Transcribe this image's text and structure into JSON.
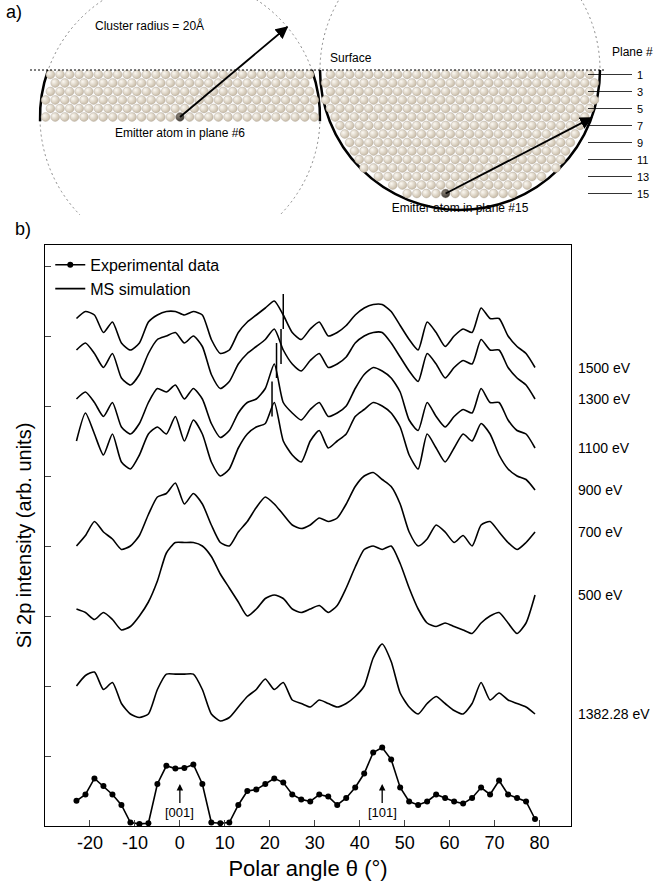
{
  "diagram": {
    "label": "a)",
    "cluster_label": "Cluster radius = 20Å",
    "surface_label": "Surface",
    "plane_header": "Plane #",
    "plane_numbers": [
      1,
      3,
      5,
      7,
      9,
      11,
      13,
      15
    ],
    "clusters": [
      {
        "emitter_plane": 6,
        "label": "Emitter atom in plane #6"
      },
      {
        "emitter_plane": 15,
        "label": "Emitter atom in plane #15"
      }
    ]
  },
  "chart_data": {
    "label": "b)",
    "type": "line",
    "x_label": "Polar angle θ (°)",
    "y_label": "Si 2p intensity (arb. units)",
    "color": "#000000",
    "legend": "top left",
    "tick_labels": "x",
    "xlim": [
      -30,
      87
    ],
    "xticks": [
      -20,
      -10,
      0,
      10,
      20,
      30,
      40,
      50,
      60,
      70,
      80
    ],
    "ylim": [
      0,
      8.3
    ],
    "yticks": [
      1,
      2,
      3,
      4,
      5,
      6,
      7,
      8
    ],
    "x": [
      -23,
      -21,
      -19,
      -17,
      -15,
      -13,
      -11,
      -9,
      -7,
      -5,
      -3,
      -1,
      1,
      3,
      5,
      7,
      9,
      11,
      13,
      15,
      17,
      19,
      21,
      23,
      25,
      27,
      29,
      31,
      33,
      35,
      37,
      39,
      41,
      43,
      45,
      47,
      49,
      51,
      53,
      55,
      57,
      59,
      61,
      63,
      65,
      67,
      69,
      71,
      73,
      75,
      77,
      79
    ],
    "series": [
      {
        "name": "Experimental data",
        "marker": "circle",
        "line_style": "solid",
        "values": [
          0.36,
          0.45,
          0.68,
          0.57,
          0.45,
          0.3,
          0.05,
          0.03,
          0.04,
          0.6,
          0.86,
          0.82,
          0.83,
          0.88,
          0.6,
          0.05,
          0.04,
          0.05,
          0.3,
          0.5,
          0.52,
          0.6,
          0.68,
          0.62,
          0.45,
          0.38,
          0.35,
          0.45,
          0.42,
          0.3,
          0.4,
          0.55,
          0.75,
          1.05,
          1.12,
          0.95,
          0.55,
          0.35,
          0.3,
          0.35,
          0.45,
          0.4,
          0.35,
          0.32,
          0.4,
          0.55,
          0.45,
          0.65,
          0.45,
          0.4,
          0.35,
          0.1
        ]
      },
      {
        "name": "MS simulation",
        "label": "1500 eV",
        "line_style": "solid",
        "mark_x": 23,
        "values": [
          7.25,
          7.35,
          7.3,
          7.05,
          7.2,
          6.9,
          6.8,
          6.9,
          7.2,
          7.3,
          7.35,
          7.35,
          7.3,
          7.35,
          7.3,
          6.95,
          6.75,
          6.8,
          7.05,
          7.2,
          7.3,
          7.4,
          7.5,
          7.3,
          7.05,
          6.95,
          7.1,
          7.2,
          7.0,
          7.05,
          7.15,
          7.3,
          7.4,
          7.45,
          7.45,
          7.35,
          7.15,
          6.95,
          6.8,
          7.2,
          7.05,
          6.85,
          7.0,
          7.1,
          7.05,
          7.4,
          7.25,
          7.25,
          7.0,
          6.85,
          6.75,
          6.55
        ]
      },
      {
        "name": "MS simulation",
        "label": "1300 eV",
        "line_style": "solid",
        "mark_x": 22.5,
        "values": [
          6.8,
          6.9,
          6.75,
          6.55,
          6.75,
          6.4,
          6.3,
          6.45,
          6.75,
          6.95,
          7.0,
          7.05,
          6.9,
          7.0,
          6.85,
          6.45,
          6.25,
          6.35,
          6.6,
          6.75,
          6.85,
          6.95,
          7.1,
          6.8,
          6.6,
          6.5,
          6.65,
          6.75,
          6.55,
          6.6,
          6.7,
          6.9,
          7.0,
          7.05,
          7.05,
          6.9,
          6.7,
          6.5,
          6.35,
          6.75,
          6.6,
          6.4,
          6.55,
          6.65,
          6.6,
          6.95,
          6.8,
          6.8,
          6.55,
          6.4,
          6.3,
          6.1
        ]
      },
      {
        "name": "MS simulation",
        "label": "1100 eV",
        "line_style": "solid",
        "mark_x": 21.5,
        "values": [
          6.1,
          6.2,
          6.05,
          5.85,
          6.05,
          5.7,
          5.6,
          5.75,
          6.05,
          6.25,
          6.2,
          6.3,
          6.1,
          6.25,
          6.1,
          5.75,
          5.55,
          5.65,
          5.9,
          6.05,
          6.1,
          6.25,
          6.6,
          6.05,
          5.9,
          5.8,
          5.95,
          6.05,
          5.85,
          5.9,
          6.0,
          6.25,
          6.45,
          6.55,
          6.5,
          6.4,
          6.2,
          5.8,
          5.65,
          6.05,
          5.85,
          5.7,
          5.85,
          5.95,
          5.9,
          6.25,
          6.05,
          6.05,
          5.8,
          5.65,
          5.6,
          5.4
        ]
      },
      {
        "name": "MS simulation",
        "label": "900 eV",
        "line_style": "solid",
        "mark_x": 20.5,
        "values": [
          5.5,
          5.9,
          5.6,
          5.3,
          5.6,
          5.2,
          5.1,
          5.3,
          5.6,
          5.7,
          5.6,
          5.85,
          5.5,
          5.8,
          5.6,
          5.2,
          5.0,
          5.1,
          5.4,
          5.6,
          5.7,
          5.75,
          6.05,
          5.5,
          5.3,
          5.2,
          5.5,
          5.65,
          5.4,
          5.5,
          5.6,
          5.85,
          5.95,
          6.05,
          6.0,
          5.9,
          5.7,
          5.3,
          5.1,
          5.6,
          5.4,
          5.2,
          5.4,
          5.6,
          5.5,
          5.75,
          5.6,
          5.3,
          5.1,
          5.0,
          4.95,
          4.8
        ]
      },
      {
        "name": "MS simulation",
        "label": "700 eV",
        "line_style": "solid",
        "values": [
          4.0,
          4.15,
          4.35,
          4.2,
          4.1,
          3.95,
          4.0,
          4.15,
          4.45,
          4.7,
          4.75,
          4.9,
          4.6,
          4.75,
          4.6,
          4.3,
          4.05,
          4.0,
          4.2,
          4.35,
          4.55,
          4.7,
          4.6,
          4.45,
          4.3,
          4.25,
          4.3,
          4.4,
          4.35,
          4.4,
          4.6,
          4.85,
          5.0,
          5.05,
          4.95,
          4.85,
          4.6,
          4.2,
          4.0,
          4.1,
          4.3,
          4.2,
          4.05,
          4.15,
          4.0,
          4.3,
          4.35,
          4.2,
          4.05,
          3.95,
          4.05,
          4.2
        ]
      },
      {
        "name": "MS simulation",
        "label": "500 eV",
        "line_style": "solid",
        "values": [
          3.1,
          3.05,
          2.95,
          3.05,
          2.95,
          2.8,
          2.85,
          3.0,
          3.2,
          3.5,
          3.9,
          4.05,
          4.05,
          4.05,
          4.0,
          3.85,
          3.6,
          3.4,
          3.2,
          3.0,
          3.1,
          3.25,
          3.3,
          3.25,
          3.1,
          3.05,
          3.1,
          3.15,
          3.05,
          3.15,
          3.4,
          3.7,
          3.95,
          4.0,
          3.95,
          4.0,
          3.75,
          3.4,
          3.1,
          2.9,
          2.85,
          2.9,
          2.85,
          2.8,
          2.75,
          2.9,
          3.0,
          3.05,
          2.9,
          2.75,
          2.9,
          3.3
        ]
      },
      {
        "name": "MS simulation",
        "label": "1382.28 eV",
        "line_style": "solid",
        "values": [
          2.0,
          2.15,
          2.2,
          1.95,
          2.05,
          1.75,
          1.6,
          1.55,
          1.6,
          1.95,
          2.17,
          2.17,
          2.17,
          2.17,
          1.95,
          1.6,
          1.5,
          1.55,
          1.7,
          1.85,
          1.95,
          2.1,
          1.95,
          2.05,
          1.8,
          1.75,
          1.7,
          1.8,
          1.75,
          1.7,
          1.75,
          1.85,
          2.0,
          2.4,
          2.6,
          2.35,
          1.9,
          1.7,
          1.6,
          1.75,
          1.85,
          1.75,
          1.65,
          1.6,
          1.75,
          2.05,
          1.8,
          1.9,
          1.8,
          1.75,
          1.7,
          1.6
        ]
      }
    ],
    "annotations": [
      {
        "text": "[001]",
        "x": 0,
        "y": 0.6
      },
      {
        "text": "[101]",
        "x": 45,
        "y": 0.6
      }
    ]
  }
}
